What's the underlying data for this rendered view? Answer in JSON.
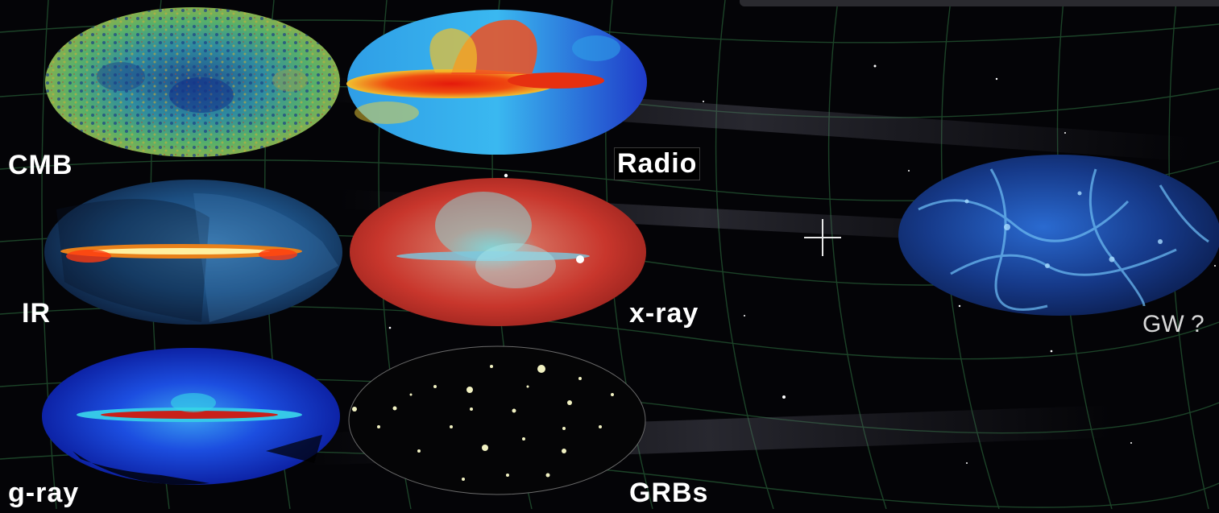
{
  "labels": {
    "cmb": "CMB",
    "radio": "Radio",
    "ir": "IR",
    "xray": "x-ray",
    "gray": "g-ray",
    "grbs": "GRBs",
    "gw": "GW ?"
  },
  "maps": [
    {
      "name": "cmb-map",
      "palette": [
        "#1e4a8a",
        "#2f8ca0",
        "#5cb36a",
        "#b3b23f"
      ]
    },
    {
      "name": "radio-map",
      "palette": [
        "#1f34c8",
        "#2fa8e8",
        "#f2e23a",
        "#e61e10"
      ]
    },
    {
      "name": "ir-map",
      "palette": [
        "#10203d",
        "#1f5a8a",
        "#e8a020",
        "#ff4a10"
      ]
    },
    {
      "name": "xray-map",
      "palette": [
        "#c8342a",
        "#e56a4a",
        "#7fd4d8",
        "#f4f4f4"
      ]
    },
    {
      "name": "gray-map",
      "palette": [
        "#0a1e9c",
        "#1f5af2",
        "#36d8e8",
        "#c8201a"
      ]
    },
    {
      "name": "grbs-map",
      "palette": [
        "#000000",
        "#f2f2c2"
      ]
    },
    {
      "name": "gw-map",
      "palette": [
        "#0b1d4a",
        "#2a72d8",
        "#86c8f2"
      ]
    }
  ],
  "plus_symbol": "+",
  "colors": {
    "background": "#040407",
    "label": "#ffffff",
    "grid": "#1f4a2c"
  }
}
